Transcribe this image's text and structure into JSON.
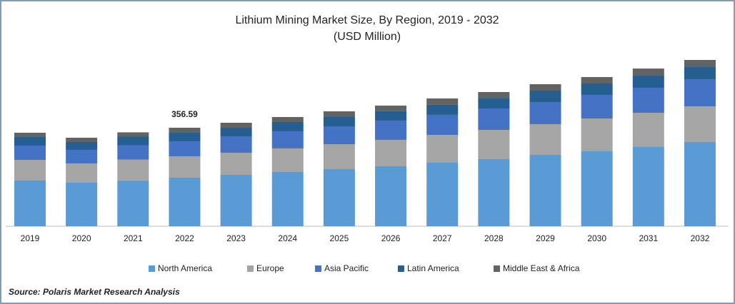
{
  "chart_data": {
    "type": "stacked_bar",
    "title": "Lithium Mining Market Size, By Region, 2019 - 2032",
    "subtitle": "(USD Million)",
    "source": "Source: Polaris Market Research Analysis",
    "categories": [
      "2019",
      "2020",
      "2021",
      "2022",
      "2023",
      "2024",
      "2025",
      "2026",
      "2027",
      "2028",
      "2029",
      "2030",
      "2031",
      "2032"
    ],
    "series": [
      {
        "name": "North America",
        "color": "#5b9bd5",
        "values": [
          165.4,
          157.6,
          166.0,
          175.7,
          186.0,
          196.4,
          206.7,
          217.1,
          230.0,
          242.9,
          258.4,
          271.3,
          286.8,
          304.9
        ]
      },
      {
        "name": "Europe",
        "color": "#a5a5a5",
        "values": [
          74.9,
          69.8,
          75.2,
          77.5,
          80.1,
          85.3,
          90.4,
          95.6,
          100.8,
          105.9,
          111.1,
          118.9,
          124.0,
          129.2
        ]
      },
      {
        "name": "Asia Pacific",
        "color": "#4472c4",
        "values": [
          51.7,
          49.1,
          51.9,
          54.3,
          59.4,
          62.0,
          64.6,
          69.8,
          72.4,
          77.5,
          80.1,
          85.3,
          90.4,
          98.2
        ]
      },
      {
        "name": "Latin America",
        "color": "#255e91",
        "values": [
          31.0,
          28.4,
          31.2,
          31.0,
          31.0,
          33.6,
          33.6,
          33.6,
          36.2,
          36.2,
          41.3,
          41.3,
          43.9,
          43.9
        ]
      },
      {
        "name": "Middle East & Africa",
        "color": "#636363",
        "values": [
          15.5,
          15.5,
          15.6,
          18.09,
          18.1,
          18.1,
          20.7,
          20.7,
          23.3,
          23.3,
          23.3,
          23.3,
          25.8,
          25.8
        ]
      }
    ],
    "annotations": [
      {
        "x": "2022",
        "value": 356.59
      }
    ]
  }
}
